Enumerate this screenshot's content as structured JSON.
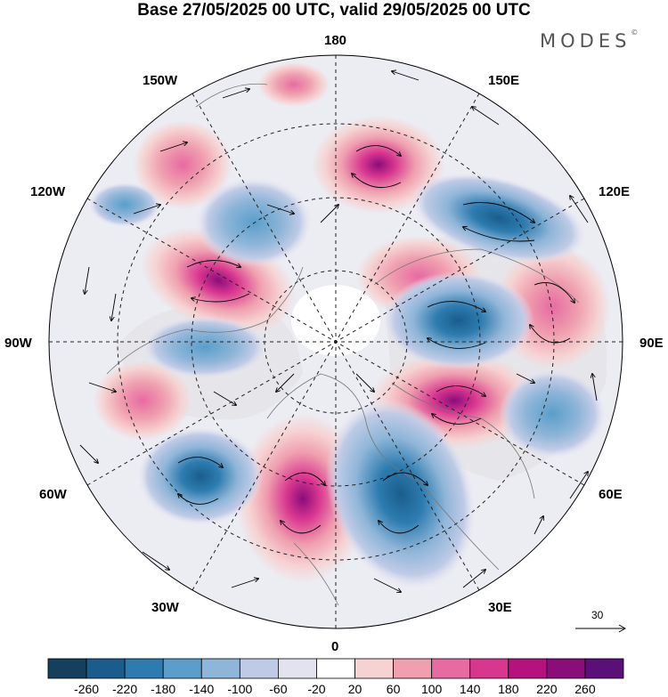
{
  "title": "Base 27/05/2025 00 UTC, valid 29/05/2025 00 UTC",
  "logo_text": "MODES",
  "logo_mark": "©",
  "longitude_labels": {
    "top": "180",
    "bottom": "0",
    "left": "90W",
    "right": "90E",
    "upper_left_1": "150W",
    "upper_left_2": "120W",
    "upper_right_1": "150E",
    "upper_right_2": "120E",
    "lower_left_1": "30W",
    "lower_left_2": "60W",
    "lower_right_1": "30E",
    "lower_right_2": "60E"
  },
  "wind_scale_label": "30",
  "colorbar": {
    "labels": [
      "-260",
      "-220",
      "-180",
      "-140",
      "-100",
      "-60",
      "-20",
      "20",
      "60",
      "100",
      "140",
      "180",
      "220",
      "260"
    ],
    "colors": [
      "#14405e",
      "#1a5d8c",
      "#2d7cb0",
      "#5a9ecb",
      "#8fb5d8",
      "#bfcbe6",
      "#e3e3f0",
      "#ffffff",
      "#f6d2d2",
      "#ef9faf",
      "#e76aa2",
      "#d9368f",
      "#b5127e",
      "#8a0d7a",
      "#5b0f78"
    ]
  },
  "map": {
    "projection": "north-polar-stereographic",
    "land_color": "#f0f0f0",
    "features": [
      {
        "name": "ridge-north-atlantic",
        "value": 230
      },
      {
        "name": "trough-europe",
        "value": -200
      },
      {
        "name": "trough-labrador",
        "value": -190
      },
      {
        "name": "ridge-canada",
        "value": 220
      },
      {
        "name": "ridge-central-asia",
        "value": 200
      },
      {
        "name": "trough-west-siberia",
        "value": -170
      },
      {
        "name": "ridge-north-pacific",
        "value": 180
      },
      {
        "name": "trough-east-asia",
        "value": -170
      }
    ]
  }
}
